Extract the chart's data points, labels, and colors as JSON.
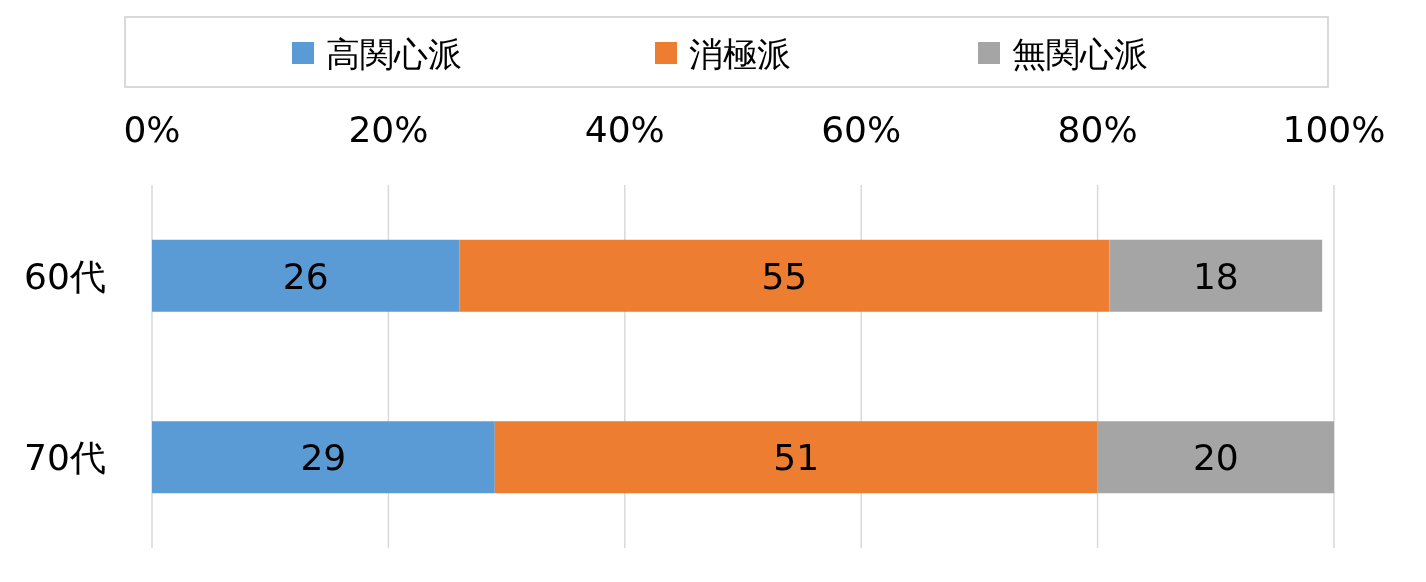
{
  "chart_data": {
    "type": "bar",
    "orientation": "horizontal",
    "stacked": true,
    "categories": [
      "60代",
      "70代"
    ],
    "series": [
      {
        "name": "高関心派",
        "color": "#5b9bd5",
        "values": [
          26,
          29
        ]
      },
      {
        "name": "消極派",
        "color": "#ed7d31",
        "values": [
          55,
          51
        ]
      },
      {
        "name": "無関心派",
        "color": "#a5a5a5",
        "values": [
          18,
          20
        ]
      }
    ],
    "xlim": [
      0,
      100
    ],
    "xticks": [
      {
        "value": 0,
        "label": "0%"
      },
      {
        "value": 20,
        "label": "20%"
      },
      {
        "value": 40,
        "label": "40%"
      },
      {
        "value": 60,
        "label": "60%"
      },
      {
        "value": 80,
        "label": "80%"
      },
      {
        "value": 100,
        "label": "100%"
      }
    ],
    "grid": "x",
    "legend": "top",
    "data_labels": true
  }
}
